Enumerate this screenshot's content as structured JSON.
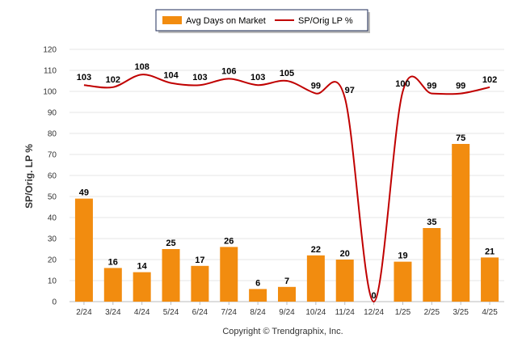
{
  "chart_data": {
    "type": "bar",
    "categories": [
      "2/24",
      "3/24",
      "4/24",
      "5/24",
      "6/24",
      "7/24",
      "8/24",
      "9/24",
      "10/24",
      "11/24",
      "12/24",
      "1/25",
      "2/25",
      "3/25",
      "4/25"
    ],
    "series": [
      {
        "name": "Avg Days on Market",
        "type": "bar",
        "color": "#F28C0F",
        "values": [
          49,
          16,
          14,
          25,
          17,
          26,
          6,
          7,
          22,
          20,
          0,
          19,
          35,
          75,
          21
        ]
      },
      {
        "name": "SP/Orig LP %",
        "type": "line",
        "color": "#C00000",
        "values": [
          103,
          102,
          108,
          104,
          103,
          106,
          103,
          105,
          99,
          97,
          0,
          100,
          99,
          99,
          102
        ]
      }
    ],
    "ylabel": "SP/Orig. LP %",
    "ylim": [
      0,
      120
    ],
    "yticks": [
      0,
      10,
      20,
      30,
      40,
      50,
      60,
      70,
      80,
      90,
      100,
      110,
      120
    ],
    "grid": true,
    "legend_position": "top-center"
  },
  "footer": {
    "copyright": "Copyright © Trendgraphix, Inc."
  }
}
